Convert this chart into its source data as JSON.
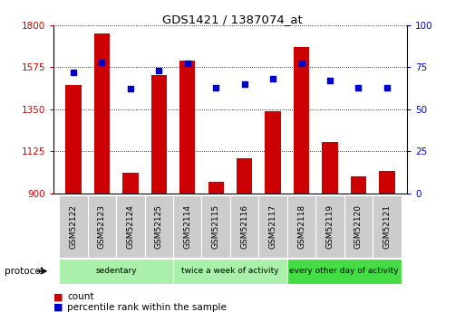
{
  "title": "GDS1421 / 1387074_at",
  "samples": [
    "GSM52122",
    "GSM52123",
    "GSM52124",
    "GSM52125",
    "GSM52114",
    "GSM52115",
    "GSM52116",
    "GSM52117",
    "GSM52118",
    "GSM52119",
    "GSM52120",
    "GSM52121"
  ],
  "counts": [
    1480,
    1755,
    1010,
    1530,
    1610,
    960,
    1090,
    1340,
    1680,
    1175,
    990,
    1020
  ],
  "percentiles": [
    72,
    78,
    62,
    73,
    77,
    63,
    65,
    68,
    77,
    67,
    63,
    63
  ],
  "groups": [
    {
      "label": "sedentary",
      "start": 0,
      "end": 4,
      "color": "#aaf0aa"
    },
    {
      "label": "twice a week of activity",
      "start": 4,
      "end": 8,
      "color": "#aaf0aa"
    },
    {
      "label": "every other day of activity",
      "start": 8,
      "end": 12,
      "color": "#44dd44"
    }
  ],
  "ylim_left": [
    900,
    1800
  ],
  "ylim_right": [
    0,
    100
  ],
  "yticks_left": [
    900,
    1125,
    1350,
    1575,
    1800
  ],
  "yticks_right": [
    0,
    25,
    50,
    75,
    100
  ],
  "bar_color": "#cc0000",
  "dot_color": "#0000cc",
  "bar_width": 0.55,
  "tick_label_color_left": "#cc0000",
  "tick_label_color_right": "#0000cc",
  "legend_count_label": "count",
  "legend_pct_label": "percentile rank within the sample",
  "xlabel_bg_color": "#cccccc",
  "xlabel_cell_edge_color": "#ffffff"
}
